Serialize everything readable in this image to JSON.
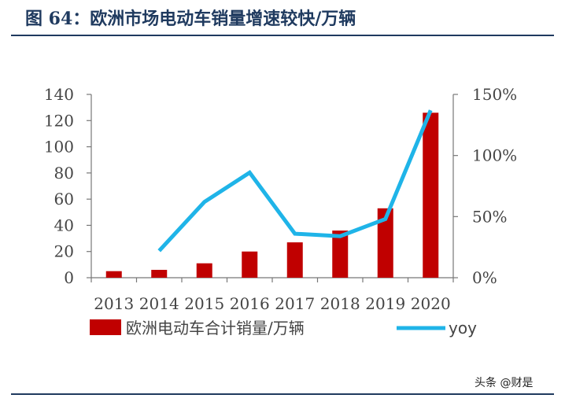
{
  "header": {
    "title": "图 64：欧洲市场电动车销量增速较快/万辆"
  },
  "watermark": "头条 @财是",
  "chart_data": {
    "type": "bar",
    "categories": [
      "2013",
      "2014",
      "2015",
      "2016",
      "2017",
      "2018",
      "2019",
      "2020"
    ],
    "series": [
      {
        "name": "欧洲电动车合计销量/万辆",
        "type": "bar",
        "axis": "left",
        "values": [
          5,
          6,
          11,
          20,
          27,
          36,
          53,
          126
        ],
        "color": "#c00000"
      },
      {
        "name": "yoy",
        "type": "line",
        "axis": "right",
        "values": [
          null,
          22,
          62,
          86,
          36,
          34,
          48,
          137
        ],
        "color": "#1fb4e8"
      }
    ],
    "y_left": {
      "ylim": [
        0,
        140
      ],
      "ticks": [
        "0",
        "20",
        "40",
        "60",
        "80",
        "100",
        "120",
        "140"
      ]
    },
    "y_right": {
      "ylim": [
        0,
        150
      ],
      "ticks": [
        "0%",
        "50%",
        "100%",
        "150%"
      ]
    },
    "grid": false,
    "legend_position": "bottom"
  }
}
